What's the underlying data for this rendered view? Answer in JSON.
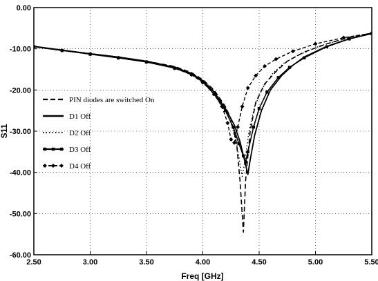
{
  "chart_data": {
    "type": "line",
    "xlabel": "Freq [GHz]",
    "ylabel": "S11",
    "xlim": [
      2.5,
      5.5
    ],
    "ylim": [
      -60,
      0
    ],
    "x_ticks": [
      "2.50",
      "3.00",
      "3.50",
      "4.00",
      "4.50",
      "5.00",
      "5.50"
    ],
    "y_ticks": [
      "0.00",
      "-10.00",
      "-20.00",
      "-30.00",
      "-40.00",
      "-50.00",
      "-60.00"
    ],
    "grid": true,
    "legend_placement": "middle-left",
    "series": [
      {
        "name": "PIN diodes are switched On",
        "style": "dashed",
        "points": [
          [
            2.5,
            -9.4
          ],
          [
            2.75,
            -10.3
          ],
          [
            3.0,
            -11.2
          ],
          [
            3.25,
            -12.0
          ],
          [
            3.5,
            -13.0
          ],
          [
            3.75,
            -14.3
          ],
          [
            3.9,
            -15.8
          ],
          [
            4.0,
            -17.5
          ],
          [
            4.1,
            -20.0
          ],
          [
            4.2,
            -24.0
          ],
          [
            4.25,
            -27.0
          ],
          [
            4.3,
            -33.0
          ],
          [
            4.33,
            -42.0
          ],
          [
            4.36,
            -54.5
          ],
          [
            4.38,
            -42.0
          ],
          [
            4.42,
            -30.0
          ],
          [
            4.47,
            -23.0
          ],
          [
            4.55,
            -18.5
          ],
          [
            4.65,
            -15.5
          ],
          [
            4.75,
            -13.0
          ],
          [
            4.9,
            -10.8
          ],
          [
            5.1,
            -8.8
          ],
          [
            5.3,
            -7.2
          ],
          [
            5.5,
            -6.2
          ]
        ]
      },
      {
        "name": "D1 Off",
        "style": "solid",
        "points": [
          [
            2.5,
            -9.4
          ],
          [
            2.75,
            -10.3
          ],
          [
            3.0,
            -11.2
          ],
          [
            3.25,
            -12.0
          ],
          [
            3.5,
            -13.0
          ],
          [
            3.75,
            -14.5
          ],
          [
            3.9,
            -16.0
          ],
          [
            4.0,
            -17.8
          ],
          [
            4.1,
            -20.5
          ],
          [
            4.2,
            -24.5
          ],
          [
            4.28,
            -28.5
          ],
          [
            4.33,
            -32.5
          ],
          [
            4.37,
            -37.0
          ],
          [
            4.4,
            -40.5
          ],
          [
            4.42,
            -37.0
          ],
          [
            4.46,
            -31.0
          ],
          [
            4.52,
            -25.0
          ],
          [
            4.6,
            -20.0
          ],
          [
            4.7,
            -16.5
          ],
          [
            4.8,
            -14.0
          ],
          [
            4.9,
            -12.0
          ],
          [
            5.1,
            -9.4
          ],
          [
            5.3,
            -7.6
          ],
          [
            5.5,
            -6.3
          ]
        ]
      },
      {
        "name": "D2 Off",
        "style": "dotted",
        "points": [
          [
            2.5,
            -9.4
          ],
          [
            2.75,
            -10.3
          ],
          [
            3.0,
            -11.2
          ],
          [
            3.25,
            -12.0
          ],
          [
            3.5,
            -13.0
          ],
          [
            3.75,
            -14.4
          ],
          [
            3.9,
            -15.9
          ],
          [
            4.0,
            -17.6
          ],
          [
            4.1,
            -20.2
          ],
          [
            4.18,
            -23.5
          ],
          [
            4.25,
            -28.0
          ],
          [
            4.3,
            -33.0
          ],
          [
            4.33,
            -38.0
          ],
          [
            4.35,
            -41.0
          ],
          [
            4.37,
            -38.0
          ],
          [
            4.41,
            -30.0
          ],
          [
            4.46,
            -24.0
          ],
          [
            4.53,
            -19.5
          ],
          [
            4.62,
            -16.0
          ],
          [
            4.72,
            -13.5
          ],
          [
            4.85,
            -11.5
          ],
          [
            5.05,
            -9.2
          ],
          [
            5.3,
            -7.3
          ],
          [
            5.5,
            -6.2
          ]
        ]
      },
      {
        "name": "D3 Off",
        "style": "solid-triangle",
        "points": [
          [
            2.5,
            -9.5
          ],
          [
            2.75,
            -10.4
          ],
          [
            3.0,
            -11.3
          ],
          [
            3.25,
            -12.2
          ],
          [
            3.5,
            -13.2
          ],
          [
            3.75,
            -14.7
          ],
          [
            3.9,
            -16.2
          ],
          [
            4.0,
            -18.0
          ],
          [
            4.1,
            -21.0
          ],
          [
            4.2,
            -25.0
          ],
          [
            4.27,
            -29.0
          ],
          [
            4.32,
            -33.0
          ],
          [
            4.36,
            -36.0
          ],
          [
            4.38,
            -37.5
          ],
          [
            4.4,
            -35.0
          ],
          [
            4.45,
            -29.0
          ],
          [
            4.5,
            -24.5
          ],
          [
            4.57,
            -20.5
          ],
          [
            4.67,
            -17.0
          ],
          [
            4.77,
            -14.5
          ],
          [
            4.9,
            -12.2
          ],
          [
            5.1,
            -9.5
          ],
          [
            5.3,
            -7.6
          ],
          [
            5.5,
            -6.3
          ]
        ]
      },
      {
        "name": "D4 Off",
        "style": "dashed-diamond",
        "points": [
          [
            2.5,
            -9.5
          ],
          [
            2.75,
            -10.4
          ],
          [
            3.0,
            -11.3
          ],
          [
            3.25,
            -12.2
          ],
          [
            3.5,
            -13.2
          ],
          [
            3.75,
            -14.7
          ],
          [
            3.9,
            -16.3
          ],
          [
            4.0,
            -18.2
          ],
          [
            4.1,
            -21.0
          ],
          [
            4.17,
            -24.0
          ],
          [
            4.22,
            -28.0
          ],
          [
            4.25,
            -32.0
          ],
          [
            4.28,
            -32.8
          ],
          [
            4.31,
            -29.0
          ],
          [
            4.35,
            -24.0
          ],
          [
            4.4,
            -19.5
          ],
          [
            4.47,
            -16.5
          ],
          [
            4.55,
            -14.2
          ],
          [
            4.65,
            -12.5
          ],
          [
            4.8,
            -10.6
          ],
          [
            5.0,
            -8.8
          ],
          [
            5.25,
            -7.3
          ],
          [
            5.5,
            -6.2
          ]
        ]
      }
    ]
  }
}
